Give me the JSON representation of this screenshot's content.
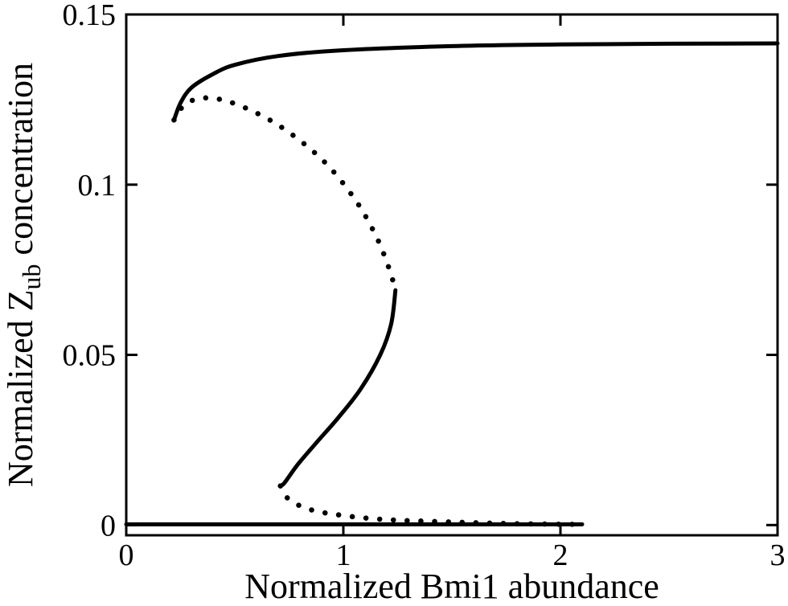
{
  "chart_data": {
    "type": "line",
    "title": "",
    "xlabel": "Normalized Bmi1 abundance",
    "ylabel": {
      "before": "Normalized Z",
      "subscript": "ub",
      "after": " concentration"
    },
    "xlim": [
      0,
      3
    ],
    "ylim": [
      -0.003,
      0.15
    ],
    "xticks": [
      {
        "value": 0,
        "label": "0"
      },
      {
        "value": 1,
        "label": "1"
      },
      {
        "value": 2,
        "label": "2"
      },
      {
        "value": 3,
        "label": "3"
      }
    ],
    "yticks": [
      {
        "value": 0,
        "label": "0"
      },
      {
        "value": 0.05,
        "label": "0.05"
      },
      {
        "value": 0.1,
        "label": "0.1"
      },
      {
        "value": 0.15,
        "label": "0.15"
      }
    ],
    "grid": false,
    "legend": "none",
    "series": [
      {
        "id": "upper-stable",
        "style": "solid",
        "points": [
          [
            0.22,
            0.119
          ],
          [
            0.25,
            0.124
          ],
          [
            0.3,
            0.1285
          ],
          [
            0.4,
            0.1325
          ],
          [
            0.5,
            0.1352
          ],
          [
            0.7,
            0.1378
          ],
          [
            1.0,
            0.1395
          ],
          [
            1.5,
            0.1407
          ],
          [
            2.0,
            0.1412
          ],
          [
            2.5,
            0.1414
          ],
          [
            3.0,
            0.1415
          ]
        ]
      },
      {
        "id": "upper-unstable",
        "style": "dotted",
        "points": [
          [
            0.22,
            0.119
          ],
          [
            0.27,
            0.1235
          ],
          [
            0.36,
            0.1255
          ],
          [
            0.5,
            0.1238
          ],
          [
            0.7,
            0.1175
          ],
          [
            0.9,
            0.1075
          ],
          [
            1.05,
            0.096
          ],
          [
            1.15,
            0.085
          ],
          [
            1.21,
            0.0755
          ],
          [
            1.24,
            0.069
          ]
        ]
      },
      {
        "id": "middle-stable",
        "style": "solid",
        "points": [
          [
            1.24,
            0.069
          ],
          [
            1.22,
            0.059
          ],
          [
            1.17,
            0.05
          ],
          [
            1.08,
            0.04
          ],
          [
            0.98,
            0.0318
          ],
          [
            0.88,
            0.0245
          ],
          [
            0.79,
            0.0178
          ],
          [
            0.73,
            0.0125
          ],
          [
            0.71,
            0.0115
          ]
        ]
      },
      {
        "id": "lower-unstable",
        "style": "dotted",
        "points": [
          [
            0.71,
            0.0115
          ],
          [
            0.75,
            0.0075
          ],
          [
            0.85,
            0.0045
          ],
          [
            1.0,
            0.0028
          ],
          [
            1.2,
            0.0016
          ],
          [
            1.5,
            0.0009
          ],
          [
            1.8,
            0.0004
          ],
          [
            2.1,
            0.0002
          ]
        ]
      },
      {
        "id": "lower-stable",
        "style": "solid",
        "points": [
          [
            0.0,
            0.0002
          ],
          [
            0.5,
            0.0002
          ],
          [
            1.0,
            0.0002
          ],
          [
            1.5,
            0.0002
          ],
          [
            2.1,
            0.0002
          ]
        ]
      }
    ]
  }
}
